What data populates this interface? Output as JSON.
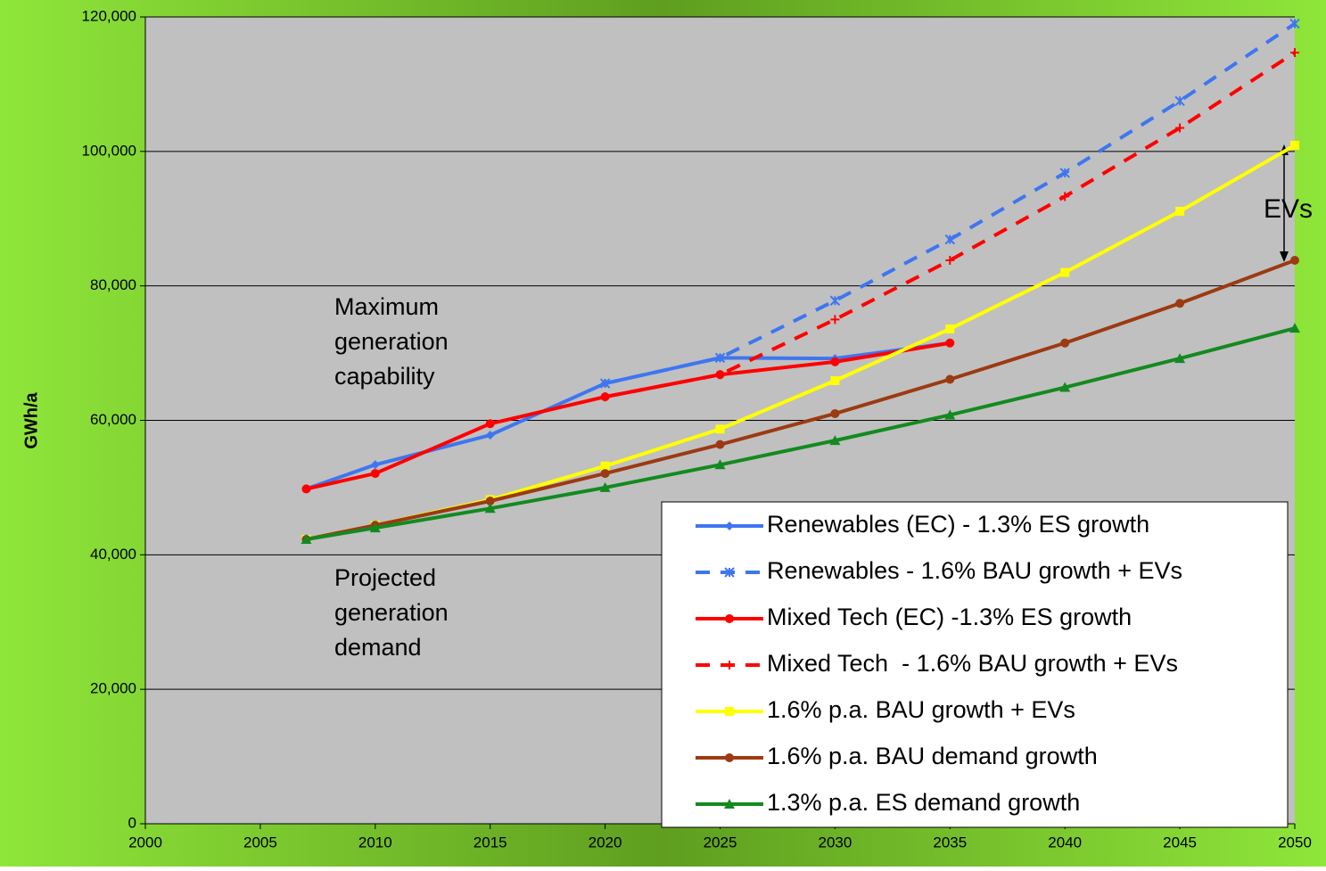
{
  "chart_data": {
    "type": "line",
    "y_label": "GWh/a",
    "xlim": [
      2000,
      2050
    ],
    "xticks": [
      2000,
      2005,
      2010,
      2015,
      2020,
      2025,
      2030,
      2035,
      2040,
      2045,
      2050
    ],
    "ylim": [
      0,
      120000
    ],
    "yticks": [
      0,
      {
        "value": 20000,
        "label": "20,000"
      },
      {
        "value": 40000,
        "label": "40,000"
      },
      {
        "value": 60000,
        "label": "60,000"
      },
      {
        "value": 80000,
        "label": "80,000"
      },
      {
        "value": 100000,
        "label": "100,000"
      },
      {
        "value": 120000,
        "label": "120,000"
      }
    ],
    "grid": true,
    "legend": "lower right",
    "series": [
      {
        "name": "Renewables (EC) - 1.3% ES growth",
        "color": "#3e76f0",
        "marker": "diamond",
        "dash": false,
        "x": [
          2007,
          2010,
          2015,
          2020,
          2025,
          2030,
          2035
        ],
        "values": [
          49800,
          53400,
          57800,
          65500,
          69300,
          69200,
          71500
        ]
      },
      {
        "name": "Renewables - 1.6% BAU growth + EVs",
        "color": "#3e76f0",
        "marker": "star",
        "dash": true,
        "x": [
          2020,
          2025,
          2030,
          2035,
          2040,
          2045,
          2050
        ],
        "values": [
          65500,
          69300,
          77800,
          86900,
          96800,
          107500,
          119000
        ]
      },
      {
        "name": "Mixed Tech (EC) -1.3% ES growth",
        "color": "#ff0000",
        "marker": "circle",
        "dash": false,
        "x": [
          2007,
          2010,
          2015,
          2020,
          2025,
          2030,
          2035
        ],
        "values": [
          49800,
          52100,
          59500,
          63500,
          66800,
          68700,
          71500
        ]
      },
      {
        "name": "Mixed Tech  - 1.6% BAU growth + EVs",
        "color": "#ff0000",
        "marker": "plus",
        "dash": true,
        "x": [
          2020,
          2025,
          2030,
          2035,
          2040,
          2045,
          2050
        ],
        "values": [
          63500,
          66800,
          75000,
          83800,
          93300,
          103500,
          114700
        ]
      },
      {
        "name": "1.6% p.a. BAU growth + EVs",
        "color": "#ffff00",
        "marker": "square",
        "dash": false,
        "x": [
          2007,
          2010,
          2015,
          2020,
          2025,
          2030,
          2035,
          2040,
          2045,
          2050
        ],
        "values": [
          42300,
          44400,
          48200,
          53200,
          58700,
          65900,
          73600,
          82000,
          91100,
          100900
        ]
      },
      {
        "name": "1.6% p.a. BAU demand growth",
        "color": "#9c3a12",
        "marker": "circle",
        "dash": false,
        "x": [
          2007,
          2010,
          2015,
          2020,
          2025,
          2030,
          2035,
          2040,
          2045,
          2050
        ],
        "values": [
          42300,
          44400,
          48000,
          52100,
          56400,
          61000,
          66100,
          71500,
          77400,
          83800
        ]
      },
      {
        "name": "1.3% p.a. ES demand growth",
        "color": "#138a1f",
        "marker": "triangle",
        "dash": false,
        "x": [
          2007,
          2010,
          2015,
          2020,
          2025,
          2030,
          2035,
          2040,
          2045,
          2050
        ],
        "values": [
          42300,
          44000,
          46900,
          50000,
          53400,
          57000,
          60800,
          64900,
          69200,
          73700
        ]
      }
    ],
    "annotations": [
      {
        "lines": [
          "Maximum",
          "generation",
          "capability"
        ]
      },
      {
        "lines": [
          "Projected",
          "generation",
          "demand"
        ]
      },
      {
        "lines": [
          "EVs"
        ]
      }
    ]
  }
}
